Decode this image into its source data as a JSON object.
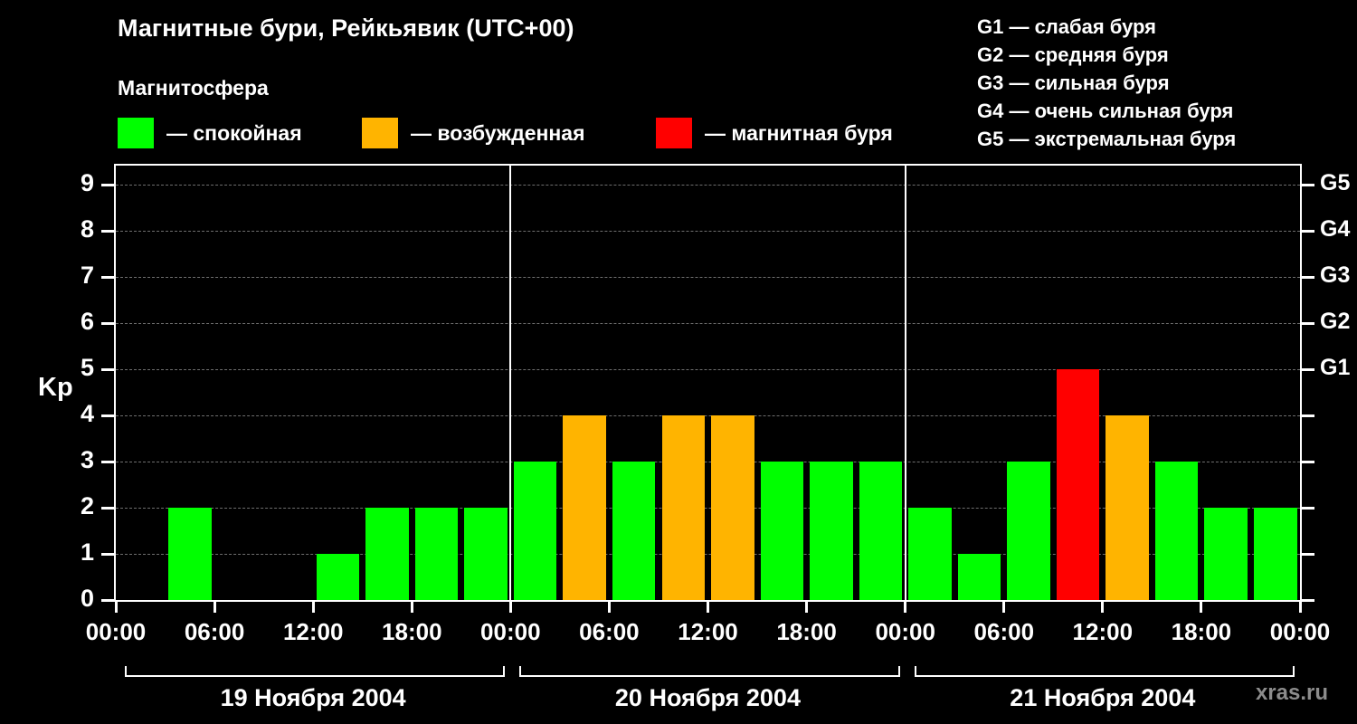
{
  "watermark": "xras.ru",
  "legend": [
    {
      "label": "— спокойная",
      "color": "#00ff00"
    },
    {
      "label": "— возбужденная",
      "color": "#ffb400"
    },
    {
      "label": "— магнитная буря",
      "color": "#ff0000"
    }
  ],
  "storm_scale": [
    "G1 — слабая буря",
    "G2 — средняя буря",
    "G3 — сильная буря",
    "G4 — очень сильная буря",
    "G5 — экстремальная буря"
  ],
  "chart_data": {
    "type": "bar",
    "title": "Магнитные бури, Рейкьявик (UTC+00)",
    "subtitle": "Магнитосфера",
    "ylabel": "Kp",
    "ylim": [
      0,
      9.4
    ],
    "yticks": [
      0,
      1,
      2,
      3,
      4,
      5,
      6,
      7,
      8,
      9
    ],
    "right_axis_ticks": [
      {
        "value": 5,
        "label": "G1"
      },
      {
        "value": 6,
        "label": "G2"
      },
      {
        "value": 7,
        "label": "G3"
      },
      {
        "value": 8,
        "label": "G4"
      },
      {
        "value": 9,
        "label": "G5"
      }
    ],
    "x_tick_labels": [
      "00:00",
      "06:00",
      "12:00",
      "18:00",
      "00:00",
      "06:00",
      "12:00",
      "18:00",
      "00:00",
      "06:00",
      "12:00",
      "18:00",
      "00:00"
    ],
    "interval_hours": 3,
    "days": [
      {
        "label": "19 Ноября 2004",
        "values": [
          0,
          2,
          0,
          0,
          1,
          2,
          2,
          2
        ]
      },
      {
        "label": "20 Ноября 2004",
        "values": [
          3,
          4,
          3,
          4,
          4,
          3,
          3,
          3
        ]
      },
      {
        "label": "21 Ноября 2004",
        "values": [
          2,
          1,
          3,
          5,
          4,
          3,
          2,
          2
        ]
      }
    ],
    "colors": {
      "quiet": "#00ff00",
      "excited": "#ffb400",
      "storm": "#ff0000",
      "grid": "#6e6e6e",
      "axis": "#ffffff"
    },
    "thresholds": {
      "excited_min": 4,
      "storm_min": 5
    },
    "grid": "dashed-horizontal",
    "legend_position": "top-left"
  }
}
